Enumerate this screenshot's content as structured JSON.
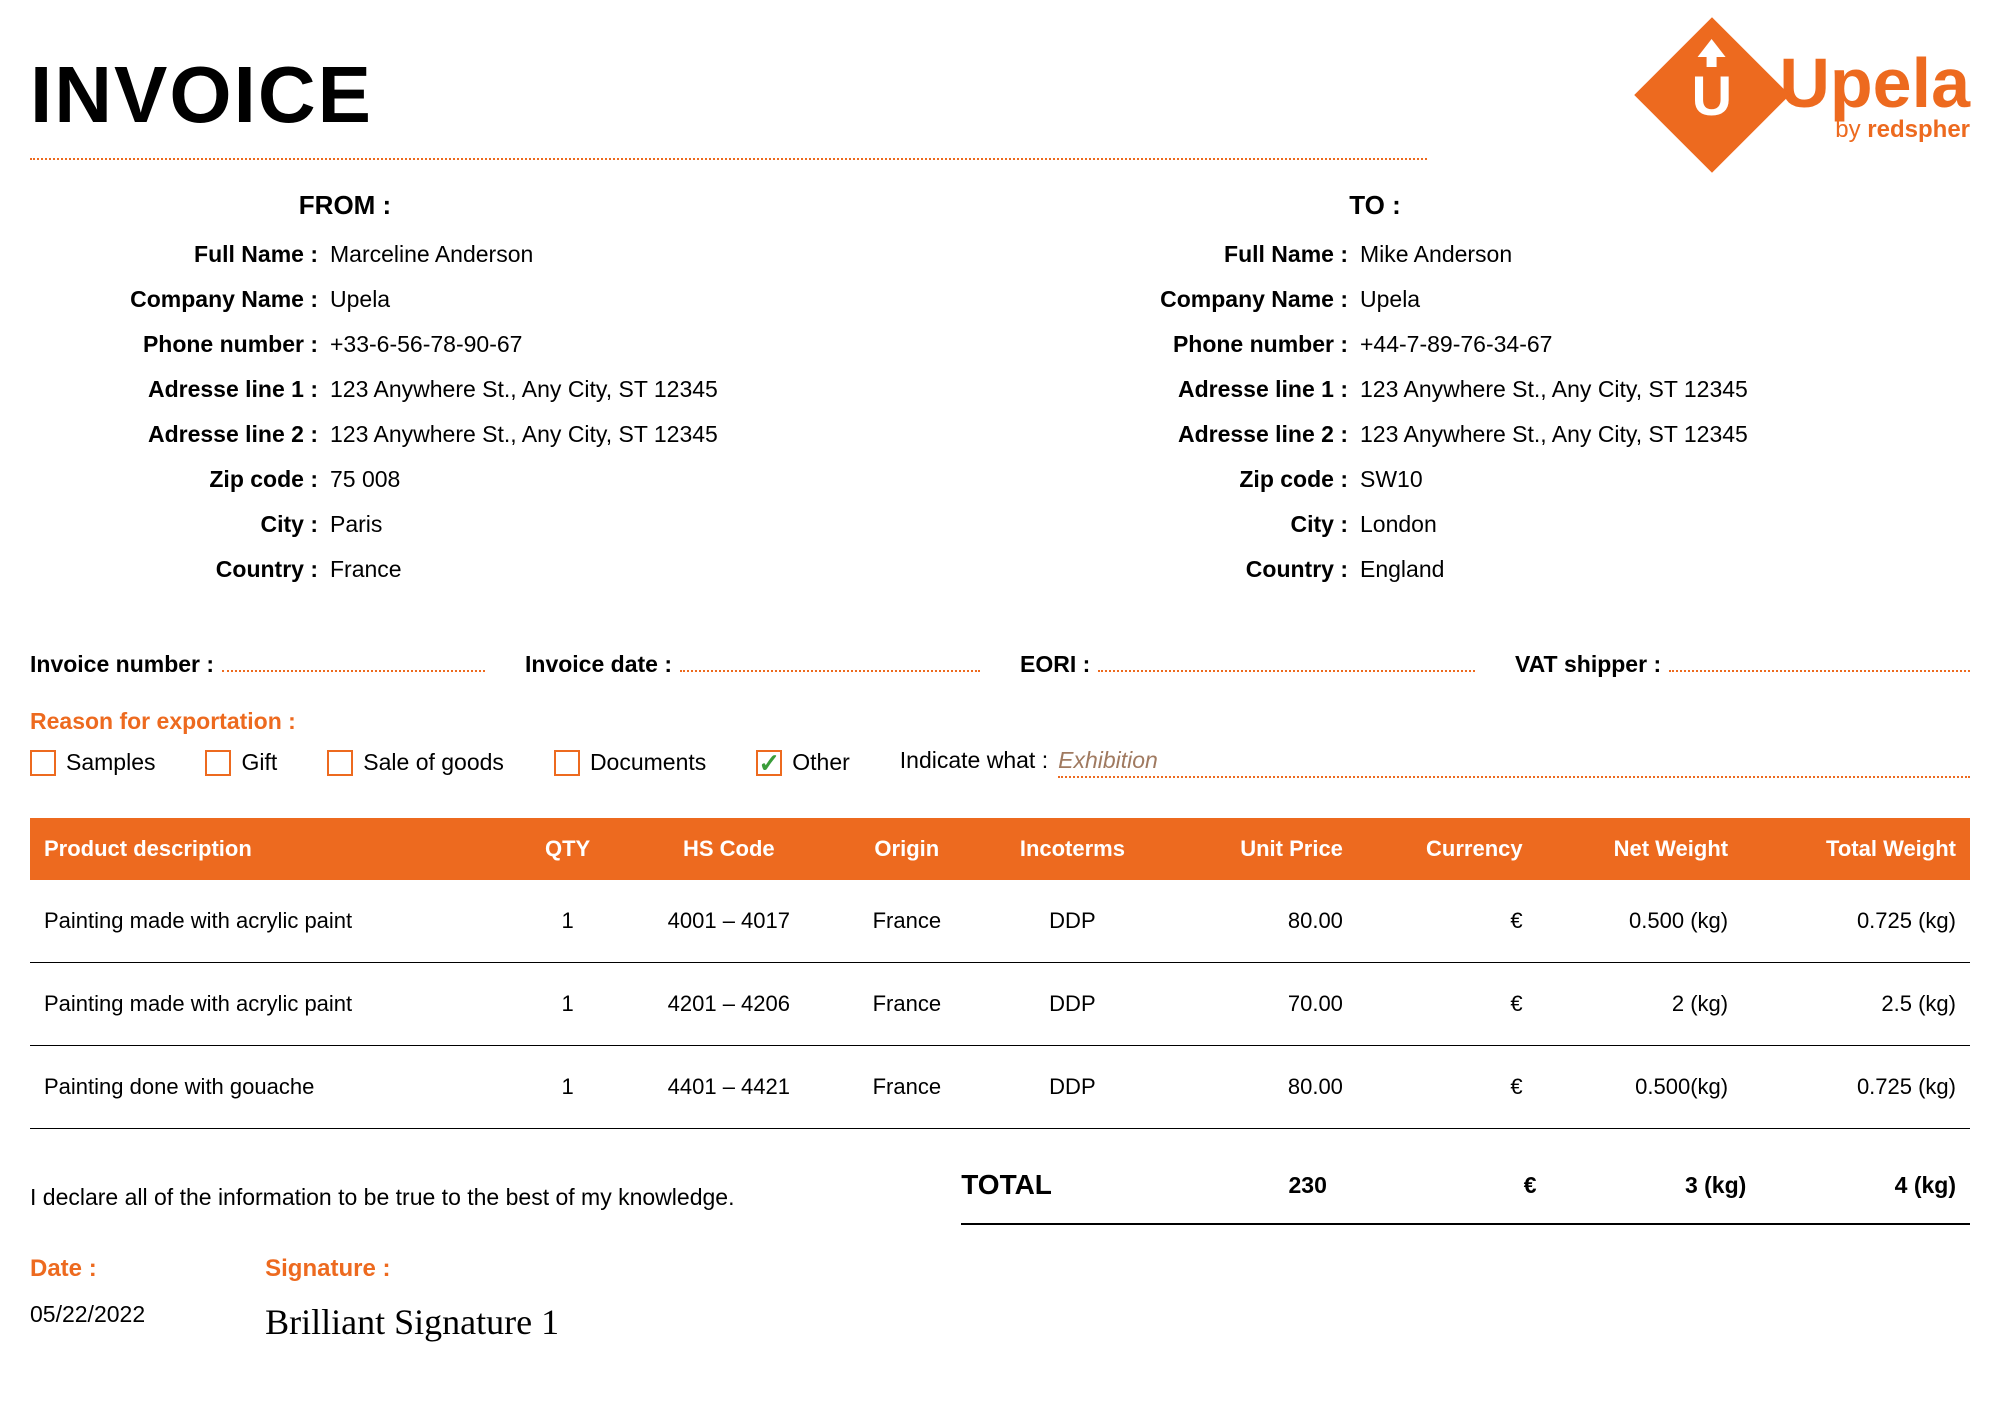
{
  "title": "INVOICE",
  "logo": {
    "name": "Upela",
    "byline_prefix": "by ",
    "byline_brand": "redspher"
  },
  "from_heading": "FROM :",
  "to_heading": "TO :",
  "field_labels": {
    "full_name": "Full Name :",
    "company": "Company Name :",
    "phone": "Phone number :",
    "addr1": "Adresse line 1 :",
    "addr2": "Adresse line 2 :",
    "zip": "Zip code :",
    "city": "City :",
    "country": "Country :"
  },
  "from": {
    "full_name": "Marceline Anderson",
    "company": "Upela",
    "phone": "+33-6-56-78-90-67",
    "addr1": "123 Anywhere St., Any City, ST 12345",
    "addr2": "123 Anywhere St., Any City, ST 12345",
    "zip": "75 008",
    "city": "Paris",
    "country": "France"
  },
  "to": {
    "full_name": "Mike Anderson",
    "company": "Upela",
    "phone": "+44-7-89-76-34-67",
    "addr1": "123 Anywhere St., Any City, ST 12345",
    "addr2": "123 Anywhere St., Any City, ST 12345",
    "zip": "SW10",
    "city": "London",
    "country": "England"
  },
  "meta_labels": {
    "invoice_number": "Invoice number :",
    "invoice_date": "Invoice date :",
    "eori": "EORI :",
    "vat": "VAT shipper :"
  },
  "reason_label": "Reason for exportation :",
  "reasons": {
    "samples": "Samples",
    "gift": "Gift",
    "sale": "Sale of goods",
    "documents": "Documents",
    "other": "Other"
  },
  "indicate_label": "Indicate what :",
  "indicate_value": "Exhibition",
  "table": {
    "headers": {
      "desc": "Product description",
      "qty": "QTY",
      "hs": "HS Code",
      "origin": "Origin",
      "inco": "Incoterms",
      "unit": "Unit Price",
      "curr": "Currency",
      "net": "Net Weight",
      "tot": "Total Weight"
    },
    "rows": [
      {
        "desc": "Painting made with acrylic paint",
        "qty": "1",
        "hs": "4001 – 4017",
        "origin": "France",
        "inco": "DDP",
        "unit": "80.00",
        "curr": "€",
        "net": "0.500 (kg)",
        "tot": "0.725 (kg)"
      },
      {
        "desc": "Painting made with acrylic paint",
        "qty": "1",
        "hs": "4201 – 4206",
        "origin": "France",
        "inco": "DDP",
        "unit": "70.00",
        "curr": "€",
        "net": "2 (kg)",
        "tot": "2.5 (kg)"
      },
      {
        "desc": "Painting done with gouache",
        "qty": "1",
        "hs": "4401 – 4421",
        "origin": "France",
        "inco": "DDP",
        "unit": "80.00",
        "curr": "€",
        "net": "0.500(kg)",
        "tot": "0.725 (kg)"
      }
    ]
  },
  "declaration": "I declare all of the information to be true to the best of my knowledge.",
  "totals": {
    "label": "TOTAL",
    "unit": "230",
    "curr": "€",
    "net": "3 (kg)",
    "tot": "4 (kg)"
  },
  "footer": {
    "date_label": "Date :",
    "date_value": "05/22/2022",
    "sig_label": "Signature :",
    "sig_value": "Brilliant Signature 1"
  },
  "colors": {
    "accent": "#ed6a1f",
    "check": "#3a9d3a"
  }
}
